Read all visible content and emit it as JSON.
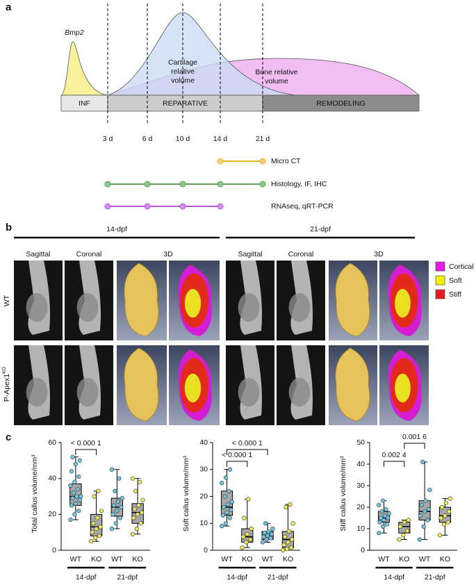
{
  "panel_a": {
    "label": "a",
    "bmp2": "Bmp2",
    "cartilage": [
      "Cartilage",
      "relative",
      "volume"
    ],
    "bone": [
      "Bone relative",
      "volume"
    ],
    "phases": [
      "INF",
      "REPARATIVE",
      "REMODELING"
    ],
    "days": [
      "3 d",
      "6 d",
      "10 d",
      "14 d",
      "21 d"
    ],
    "methods": [
      "Micro CT",
      "Histology, IF, IHC",
      "RNAseq, qRT-PCR"
    ]
  },
  "panel_b": {
    "label": "b",
    "timepoints": [
      "14-dpf",
      "21-dpf"
    ],
    "views": [
      "Sagittal",
      "Coronal",
      "3D"
    ],
    "rows": [
      {
        "text": "WT"
      },
      {
        "text": "P-Apex1",
        "sup": "KO"
      }
    ],
    "legend": [
      {
        "name": "Cortical",
        "color": "#e61ee6"
      },
      {
        "name": "Soft",
        "color": "#f0f000"
      },
      {
        "name": "Stiff",
        "color": "#e61e1e"
      }
    ]
  },
  "panel_c_label": "c",
  "chart_data": [
    {
      "type": "box",
      "ylabel": "Total callus volume/mm³",
      "categories": [
        "WT",
        "KO",
        "WT",
        "KO"
      ],
      "groups": [
        "14-dpf",
        "21-dpf"
      ],
      "ylim": [
        0,
        60
      ],
      "yticks": [
        0,
        20,
        40,
        60
      ],
      "box_color": "#a6a6a6",
      "point_colors": [
        "#6ec6e0",
        "#f0ea5a",
        "#6ec6e0",
        "#f0ea5a"
      ],
      "boxes": [
        {
          "min": 17,
          "q1": 25,
          "median": 30,
          "q3": 37,
          "max": 52,
          "points": [
            17,
            20,
            22,
            25,
            26,
            28,
            29,
            30,
            30,
            32,
            34,
            36,
            38,
            41,
            44,
            48,
            50,
            52
          ]
        },
        {
          "min": 5,
          "q1": 8,
          "median": 13,
          "q3": 20,
          "max": 33,
          "points": [
            5,
            7,
            8,
            10,
            12,
            13,
            15,
            18,
            22,
            30,
            33
          ]
        },
        {
          "min": 12,
          "q1": 19,
          "median": 24,
          "q3": 29,
          "max": 45,
          "points": [
            12,
            15,
            18,
            20,
            22,
            24,
            25,
            27,
            29,
            33,
            40,
            45
          ]
        },
        {
          "min": 9,
          "q1": 15,
          "median": 21,
          "q3": 26,
          "max": 40,
          "points": [
            9,
            12,
            15,
            18,
            20,
            21,
            23,
            25,
            28,
            33,
            38,
            40
          ]
        }
      ],
      "annotations": [
        "< 0.000 1"
      ]
    },
    {
      "type": "box",
      "ylabel": "Soft callus volume/mm³",
      "categories": [
        "WT",
        "KO",
        "WT",
        "KO"
      ],
      "groups": [
        "14-dpf",
        "21-dpf"
      ],
      "ylim": [
        0,
        40
      ],
      "yticks": [
        0,
        10,
        20,
        30,
        40
      ],
      "box_color": "#a6a6a6",
      "point_colors": [
        "#6ec6e0",
        "#f0ea5a",
        "#6ec6e0",
        "#f0ea5a"
      ],
      "boxes": [
        {
          "min": 9,
          "q1": 13,
          "median": 16,
          "q3": 22,
          "max": 30,
          "points": [
            9,
            10,
            12,
            13,
            14,
            15,
            16,
            17,
            18,
            20,
            22,
            25,
            27,
            30
          ]
        },
        {
          "min": 1,
          "q1": 3,
          "median": 5,
          "q3": 8,
          "max": 19,
          "points": [
            1,
            3,
            4,
            5,
            6,
            8,
            12,
            19
          ]
        },
        {
          "min": 3,
          "q1": 4,
          "median": 5.5,
          "q3": 7,
          "max": 10,
          "points": [
            3,
            4,
            4.5,
            5,
            5.5,
            6,
            6.5,
            7,
            8,
            10
          ]
        },
        {
          "min": 0,
          "q1": 1,
          "median": 4,
          "q3": 7,
          "max": 17,
          "points": [
            0,
            0.5,
            1,
            2,
            3,
            4,
            5,
            7,
            10,
            16,
            17
          ]
        }
      ],
      "annotations": [
        "< 0.000 1",
        "< 0.000 1"
      ]
    },
    {
      "type": "box",
      "ylabel": "Stiff callus volume/mm³",
      "categories": [
        "WT",
        "KO",
        "WT",
        "KO"
      ],
      "groups": [
        "14-dpf",
        "21-dpf"
      ],
      "ylim": [
        0,
        50
      ],
      "yticks": [
        0,
        10,
        20,
        30,
        40,
        50
      ],
      "box_color": "#a6a6a6",
      "point_colors": [
        "#6ec6e0",
        "#f0ea5a",
        "#6ec6e0",
        "#f0ea5a"
      ],
      "boxes": [
        {
          "min": 8,
          "q1": 13,
          "median": 15,
          "q3": 18,
          "max": 23,
          "points": [
            8,
            11,
            12,
            13,
            14,
            15,
            15,
            16,
            17,
            18,
            19,
            21,
            23
          ]
        },
        {
          "min": 5,
          "q1": 8,
          "median": 11,
          "q3": 13,
          "max": 14,
          "points": [
            5,
            7,
            9,
            11,
            13,
            14
          ]
        },
        {
          "min": 5,
          "q1": 14,
          "median": 18,
          "q3": 23,
          "max": 41,
          "points": [
            5,
            11,
            14,
            16,
            18,
            19,
            21,
            23,
            28,
            41
          ]
        },
        {
          "min": 7,
          "q1": 13,
          "median": 16,
          "q3": 20,
          "max": 24,
          "points": [
            7,
            12,
            13,
            15,
            16,
            18,
            20,
            22,
            24
          ]
        }
      ],
      "annotations": [
        "0.002 4",
        "0.001 6"
      ]
    }
  ]
}
